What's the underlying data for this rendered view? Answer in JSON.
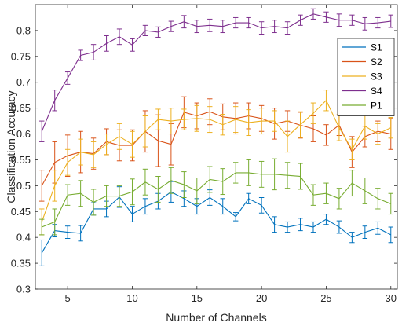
{
  "chart_data": {
    "type": "line",
    "xlabel": "Number of Channels",
    "ylabel": "Classification Accuracy",
    "xlim": [
      2.5,
      30.5
    ],
    "ylim": [
      0.3,
      0.85
    ],
    "x_ticks": [
      5,
      10,
      15,
      20,
      25,
      30
    ],
    "y_ticks": [
      0.3,
      0.35,
      0.4,
      0.45,
      0.5,
      0.55,
      0.6,
      0.65,
      0.7,
      0.75,
      0.8
    ],
    "x_tick_labels": [
      "5",
      "10",
      "15",
      "20",
      "25",
      "30"
    ],
    "y_tick_labels": [
      "0.3",
      "0.35",
      "0.4",
      "0.45",
      "0.5",
      "0.55",
      "0.6",
      "0.65",
      "0.7",
      "0.75",
      "0.8"
    ],
    "grid": false,
    "legend_position": "top-right",
    "x": [
      3,
      4,
      5,
      6,
      7,
      8,
      9,
      10,
      11,
      12,
      13,
      14,
      15,
      16,
      17,
      18,
      19,
      20,
      21,
      22,
      23,
      24,
      25,
      26,
      27,
      28,
      29,
      30
    ],
    "series": [
      {
        "name": "S1",
        "color": "#0072BD",
        "values": [
          0.37,
          0.413,
          0.41,
          0.408,
          0.455,
          0.455,
          0.478,
          0.445,
          0.46,
          0.47,
          0.488,
          0.475,
          0.46,
          0.477,
          0.46,
          0.44,
          0.475,
          0.462,
          0.425,
          0.42,
          0.425,
          0.42,
          0.435,
          0.42,
          0.4,
          0.41,
          0.418,
          0.405
        ],
        "errors": [
          0.025,
          0.012,
          0.012,
          0.015,
          0.012,
          0.015,
          0.02,
          0.015,
          0.015,
          0.015,
          0.02,
          0.015,
          0.015,
          0.015,
          0.015,
          0.008,
          0.01,
          0.015,
          0.015,
          0.01,
          0.012,
          0.01,
          0.01,
          0.012,
          0.01,
          0.012,
          0.012,
          0.015
        ]
      },
      {
        "name": "S2",
        "color": "#D95319",
        "values": [
          0.5,
          0.545,
          0.558,
          0.565,
          0.562,
          0.585,
          0.578,
          0.578,
          0.605,
          0.587,
          0.58,
          0.642,
          0.635,
          0.643,
          0.633,
          0.63,
          0.635,
          0.63,
          0.62,
          0.625,
          0.617,
          0.61,
          0.598,
          0.617,
          0.565,
          0.595,
          0.605,
          0.6
        ],
        "errors": [
          0.03,
          0.04,
          0.04,
          0.04,
          0.03,
          0.025,
          0.03,
          0.03,
          0.04,
          0.05,
          0.04,
          0.03,
          0.025,
          0.025,
          0.025,
          0.03,
          0.025,
          0.025,
          0.03,
          0.02,
          0.025,
          0.025,
          0.02,
          0.02,
          0.03,
          0.02,
          0.02,
          0.03
        ]
      },
      {
        "name": "S3",
        "color": "#EDB120",
        "values": [
          0.43,
          0.5,
          0.545,
          0.565,
          0.56,
          0.58,
          0.595,
          0.58,
          0.605,
          0.628,
          0.625,
          0.628,
          0.63,
          0.628,
          0.618,
          0.628,
          0.622,
          0.625,
          0.625,
          0.595,
          0.618,
          0.64,
          0.665,
          0.612,
          0.57,
          0.615,
          0.6,
          0.612
        ],
        "errors": [
          0.025,
          0.03,
          0.025,
          0.025,
          0.025,
          0.02,
          0.025,
          0.025,
          0.03,
          0.02,
          0.025,
          0.02,
          0.025,
          0.025,
          0.02,
          0.025,
          0.025,
          0.025,
          0.02,
          0.03,
          0.025,
          0.02,
          0.02,
          0.025,
          0.02,
          0.025,
          0.02,
          0.02
        ]
      },
      {
        "name": "S4",
        "color": "#7E2F8E",
        "values": [
          0.605,
          0.665,
          0.708,
          0.752,
          0.758,
          0.775,
          0.788,
          0.772,
          0.8,
          0.797,
          0.808,
          0.817,
          0.808,
          0.81,
          0.808,
          0.815,
          0.815,
          0.805,
          0.808,
          0.805,
          0.82,
          0.832,
          0.826,
          0.82,
          0.82,
          0.813,
          0.815,
          0.818
        ],
        "errors": [
          0.02,
          0.02,
          0.012,
          0.01,
          0.015,
          0.015,
          0.015,
          0.012,
          0.01,
          0.01,
          0.01,
          0.012,
          0.012,
          0.012,
          0.012,
          0.01,
          0.01,
          0.012,
          0.012,
          0.012,
          0.01,
          0.01,
          0.01,
          0.012,
          0.01,
          0.012,
          0.01,
          0.012
        ]
      },
      {
        "name": "P1",
        "color": "#77AC30",
        "values": [
          0.42,
          0.43,
          0.482,
          0.485,
          0.468,
          0.48,
          0.48,
          0.488,
          0.507,
          0.493,
          0.51,
          0.502,
          0.49,
          0.512,
          0.508,
          0.525,
          0.525,
          0.522,
          0.522,
          0.52,
          0.518,
          0.482,
          0.485,
          0.475,
          0.505,
          0.49,
          0.475,
          0.465
        ],
        "errors": [
          0.015,
          0.025,
          0.02,
          0.025,
          0.025,
          0.02,
          0.02,
          0.025,
          0.025,
          0.025,
          0.025,
          0.025,
          0.025,
          0.025,
          0.025,
          0.02,
          0.025,
          0.025,
          0.03,
          0.025,
          0.025,
          0.02,
          0.02,
          0.02,
          0.025,
          0.025,
          0.02,
          0.02
        ]
      }
    ]
  }
}
